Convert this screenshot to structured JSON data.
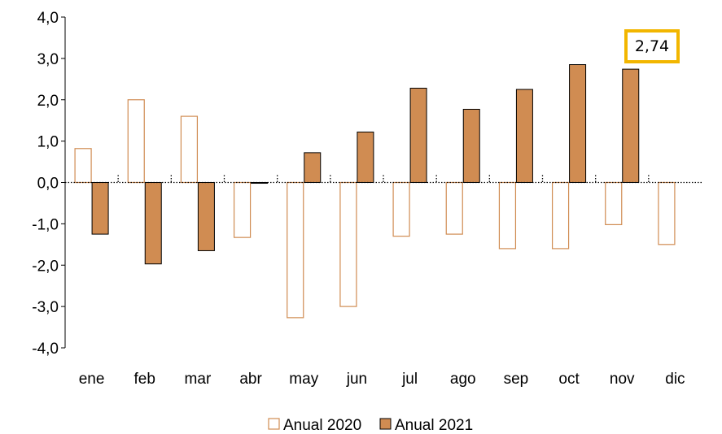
{
  "chart_data": {
    "type": "bar",
    "categories": [
      "ene",
      "feb",
      "mar",
      "abr",
      "may",
      "jun",
      "jul",
      "ago",
      "sep",
      "oct",
      "nov",
      "dic"
    ],
    "series": [
      {
        "name": "Anual 2020",
        "values": [
          0.82,
          2.0,
          1.6,
          -1.33,
          -3.27,
          -3.0,
          -1.3,
          -1.25,
          -1.6,
          -1.6,
          -1.02,
          -1.5
        ],
        "style": "outline",
        "color": "#d08c52"
      },
      {
        "name": "Anual 2021",
        "values": [
          -1.25,
          -1.97,
          -1.65,
          -0.02,
          0.72,
          1.22,
          2.28,
          1.77,
          2.25,
          2.85,
          2.74,
          null
        ],
        "style": "filled",
        "color": "#d08c52"
      }
    ],
    "ylim": [
      -4.0,
      4.0
    ],
    "yticks": [
      "4,0",
      "3,0",
      "2,0",
      "1,0",
      "0,0",
      "-1,0",
      "-2,0",
      "-3,0",
      "-4,0"
    ],
    "ytick_values": [
      4,
      3,
      2,
      1,
      0,
      -1,
      -2,
      -3,
      -4
    ],
    "annotation": {
      "label": "2,74",
      "category": "nov",
      "series": "Anual 2021",
      "border_color": "#f2b600"
    },
    "legend": {
      "position": "bottom",
      "entries": [
        "Anual 2020",
        "Anual 2021"
      ]
    },
    "grid": false,
    "zero_line": "dotted",
    "xlabel": "",
    "ylabel": "",
    "title": ""
  }
}
